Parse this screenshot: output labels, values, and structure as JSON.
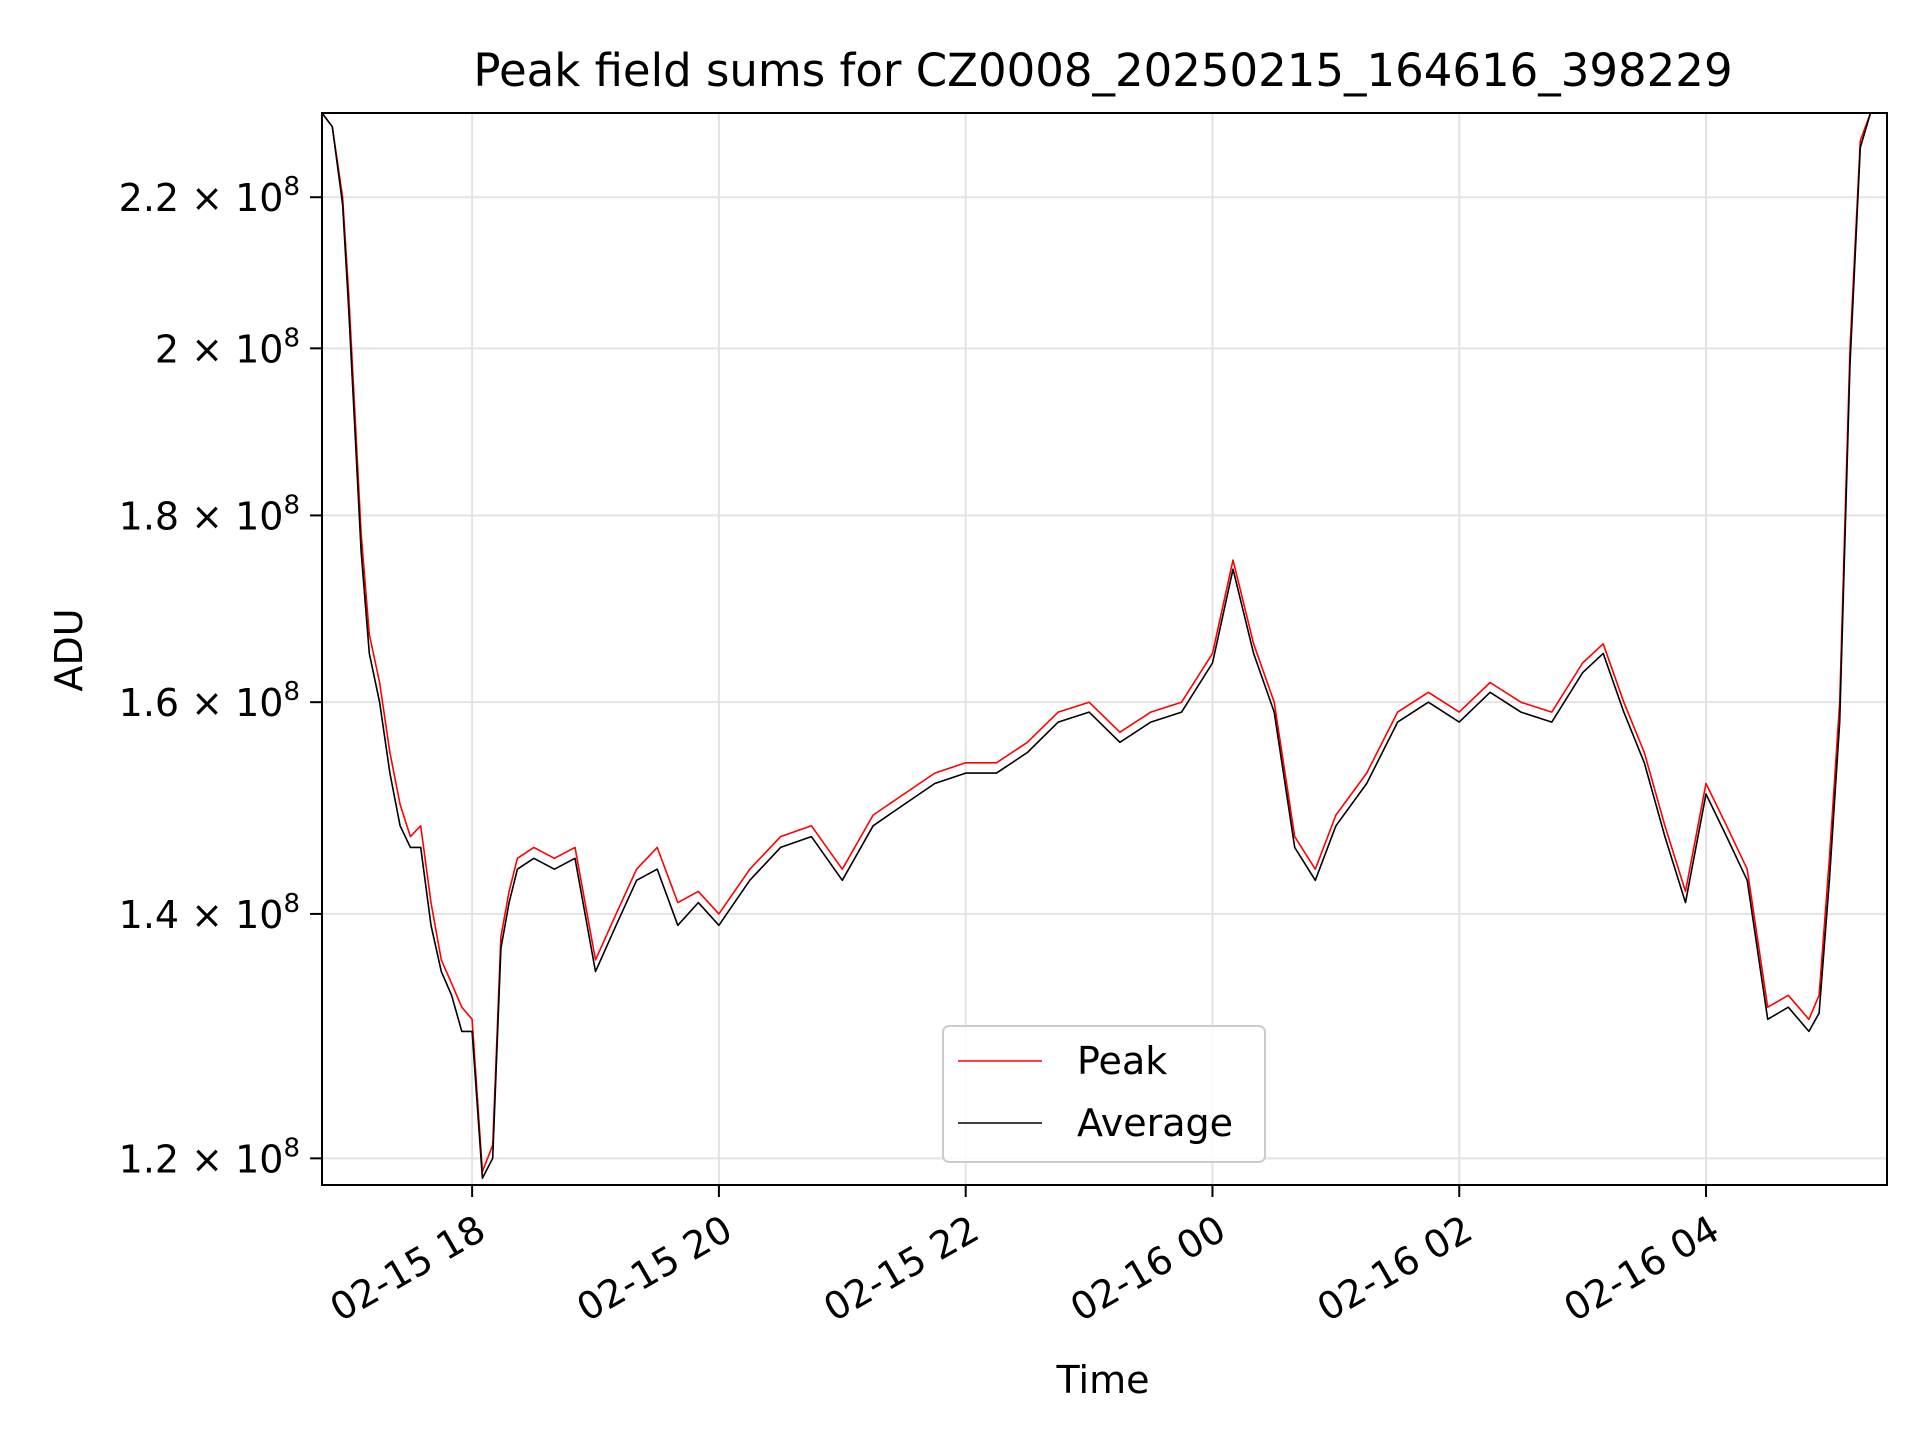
{
  "chart_data": {
    "type": "line",
    "title": "Peak field sums for CZ0008_20250215_164616_398229",
    "xlabel": "Time",
    "ylabel": "ADU",
    "y_scale": "log",
    "xlim": [
      "2025-02-15T16:47",
      "2025-02-16T05:28"
    ],
    "ylim": [
      118000000,
      232000000
    ],
    "x_ticks": [
      "02-15 18",
      "02-15 20",
      "02-15 22",
      "02-16 00",
      "02-16 02",
      "02-16 04"
    ],
    "x_tick_values": [
      "2025-02-15T18:00",
      "2025-02-15T20:00",
      "2025-02-15T22:00",
      "2025-02-16T00:00",
      "2025-02-16T02:00",
      "2025-02-16T04:00"
    ],
    "y_ticks": [
      {
        "value": 120000000,
        "mantissa": "1.2",
        "exponent": "8"
      },
      {
        "value": 140000000,
        "mantissa": "1.4",
        "exponent": "8"
      },
      {
        "value": 160000000,
        "mantissa": "1.6",
        "exponent": "8"
      },
      {
        "value": 180000000,
        "mantissa": "1.8",
        "exponent": "8"
      },
      {
        "value": 200000000,
        "mantissa": "2",
        "exponent": "8"
      },
      {
        "value": 220000000,
        "mantissa": "2.2",
        "exponent": "8"
      }
    ],
    "grid": true,
    "legend_position": "bottom-center",
    "series": [
      {
        "name": "Peak",
        "color": "#ff0000",
        "x": [
          "2025-02-15T16:47",
          "2025-02-15T16:52",
          "2025-02-15T16:57",
          "2025-02-15T17:00",
          "2025-02-15T17:03",
          "2025-02-15T17:06",
          "2025-02-15T17:10",
          "2025-02-15T17:15",
          "2025-02-15T17:20",
          "2025-02-15T17:25",
          "2025-02-15T17:30",
          "2025-02-15T17:35",
          "2025-02-15T17:40",
          "2025-02-15T17:45",
          "2025-02-15T17:50",
          "2025-02-15T17:55",
          "2025-02-15T18:00",
          "2025-02-15T18:05",
          "2025-02-15T18:10",
          "2025-02-15T18:14",
          "2025-02-15T18:18",
          "2025-02-15T18:22",
          "2025-02-15T18:30",
          "2025-02-15T18:40",
          "2025-02-15T18:50",
          "2025-02-15T19:00",
          "2025-02-15T19:10",
          "2025-02-15T19:20",
          "2025-02-15T19:30",
          "2025-02-15T19:40",
          "2025-02-15T19:50",
          "2025-02-15T20:00",
          "2025-02-15T20:15",
          "2025-02-15T20:30",
          "2025-02-15T20:45",
          "2025-02-15T21:00",
          "2025-02-15T21:15",
          "2025-02-15T21:30",
          "2025-02-15T21:45",
          "2025-02-15T22:00",
          "2025-02-15T22:15",
          "2025-02-15T22:30",
          "2025-02-15T22:45",
          "2025-02-15T23:00",
          "2025-02-15T23:15",
          "2025-02-15T23:30",
          "2025-02-15T23:45",
          "2025-02-16T00:00",
          "2025-02-16T00:10",
          "2025-02-16T00:20",
          "2025-02-16T00:30",
          "2025-02-16T00:40",
          "2025-02-16T00:50",
          "2025-02-16T01:00",
          "2025-02-16T01:15",
          "2025-02-16T01:30",
          "2025-02-16T01:45",
          "2025-02-16T02:00",
          "2025-02-16T02:15",
          "2025-02-16T02:30",
          "2025-02-16T02:45",
          "2025-02-16T03:00",
          "2025-02-16T03:10",
          "2025-02-16T03:20",
          "2025-02-16T03:30",
          "2025-02-16T03:40",
          "2025-02-16T03:50",
          "2025-02-16T04:00",
          "2025-02-16T04:10",
          "2025-02-16T04:20",
          "2025-02-16T04:30",
          "2025-02-16T04:40",
          "2025-02-16T04:50",
          "2025-02-16T04:55",
          "2025-02-16T05:00",
          "2025-02-16T05:05",
          "2025-02-16T05:10",
          "2025-02-16T05:15",
          "2025-02-16T05:20",
          "2025-02-16T05:28"
        ],
        "y": [
          232000000,
          230000000,
          220000000,
          207000000,
          192000000,
          178000000,
          167000000,
          162000000,
          155000000,
          150000000,
          147000000,
          148000000,
          141000000,
          136000000,
          134000000,
          132000000,
          131000000,
          119000000,
          121000000,
          138000000,
          142000000,
          145000000,
          146000000,
          145000000,
          146000000,
          136000000,
          140000000,
          144000000,
          146000000,
          141000000,
          142000000,
          140000000,
          144000000,
          147000000,
          148000000,
          144000000,
          149000000,
          151000000,
          153000000,
          154000000,
          154000000,
          156000000,
          159000000,
          160000000,
          157000000,
          159000000,
          160000000,
          165000000,
          175000000,
          166000000,
          160000000,
          147000000,
          144000000,
          149000000,
          153000000,
          159000000,
          161000000,
          159000000,
          162000000,
          160000000,
          159000000,
          164000000,
          166000000,
          160000000,
          155000000,
          148000000,
          142000000,
          152000000,
          148000000,
          144000000,
          132000000,
          133000000,
          131000000,
          133000000,
          145000000,
          160000000,
          200000000,
          228000000,
          232000000,
          232000000
        ]
      },
      {
        "name": "Average",
        "color": "#000000",
        "x": [
          "2025-02-15T16:47",
          "2025-02-15T16:52",
          "2025-02-15T16:57",
          "2025-02-15T17:00",
          "2025-02-15T17:03",
          "2025-02-15T17:06",
          "2025-02-15T17:10",
          "2025-02-15T17:15",
          "2025-02-15T17:20",
          "2025-02-15T17:25",
          "2025-02-15T17:30",
          "2025-02-15T17:35",
          "2025-02-15T17:40",
          "2025-02-15T17:45",
          "2025-02-15T17:50",
          "2025-02-15T17:55",
          "2025-02-15T18:00",
          "2025-02-15T18:05",
          "2025-02-15T18:10",
          "2025-02-15T18:14",
          "2025-02-15T18:18",
          "2025-02-15T18:22",
          "2025-02-15T18:30",
          "2025-02-15T18:40",
          "2025-02-15T18:50",
          "2025-02-15T19:00",
          "2025-02-15T19:10",
          "2025-02-15T19:20",
          "2025-02-15T19:30",
          "2025-02-15T19:40",
          "2025-02-15T19:50",
          "2025-02-15T20:00",
          "2025-02-15T20:15",
          "2025-02-15T20:30",
          "2025-02-15T20:45",
          "2025-02-15T21:00",
          "2025-02-15T21:15",
          "2025-02-15T21:30",
          "2025-02-15T21:45",
          "2025-02-15T22:00",
          "2025-02-15T22:15",
          "2025-02-15T22:30",
          "2025-02-15T22:45",
          "2025-02-15T23:00",
          "2025-02-15T23:15",
          "2025-02-15T23:30",
          "2025-02-15T23:45",
          "2025-02-16T00:00",
          "2025-02-16T00:10",
          "2025-02-16T00:20",
          "2025-02-16T00:30",
          "2025-02-16T00:40",
          "2025-02-16T00:50",
          "2025-02-16T01:00",
          "2025-02-16T01:15",
          "2025-02-16T01:30",
          "2025-02-16T01:45",
          "2025-02-16T02:00",
          "2025-02-16T02:15",
          "2025-02-16T02:30",
          "2025-02-16T02:45",
          "2025-02-16T03:00",
          "2025-02-16T03:10",
          "2025-02-16T03:20",
          "2025-02-16T03:30",
          "2025-02-16T03:40",
          "2025-02-16T03:50",
          "2025-02-16T04:00",
          "2025-02-16T04:10",
          "2025-02-16T04:20",
          "2025-02-16T04:30",
          "2025-02-16T04:40",
          "2025-02-16T04:50",
          "2025-02-16T04:55",
          "2025-02-16T05:00",
          "2025-02-16T05:05",
          "2025-02-16T05:10",
          "2025-02-16T05:15",
          "2025-02-16T05:20",
          "2025-02-16T05:28"
        ],
        "y": [
          232000000,
          230000000,
          219000000,
          205000000,
          190000000,
          176000000,
          165000000,
          160000000,
          153000000,
          148000000,
          146000000,
          146000000,
          139000000,
          135000000,
          133000000,
          130000000,
          130000000,
          118500000,
          120000000,
          137000000,
          141000000,
          144000000,
          145000000,
          144000000,
          145000000,
          135000000,
          139000000,
          143000000,
          144000000,
          139000000,
          141000000,
          139000000,
          143000000,
          146000000,
          147000000,
          143000000,
          148000000,
          150000000,
          152000000,
          153000000,
          153000000,
          155000000,
          158000000,
          159000000,
          156000000,
          158000000,
          159000000,
          164000000,
          174000000,
          165000000,
          159000000,
          146000000,
          143000000,
          148000000,
          152000000,
          158000000,
          160000000,
          158000000,
          161000000,
          159000000,
          158000000,
          163000000,
          165000000,
          159000000,
          154000000,
          147000000,
          141000000,
          151000000,
          147000000,
          143000000,
          131000000,
          132000000,
          130000000,
          131500000,
          143000000,
          158000000,
          198000000,
          227000000,
          232000000,
          232000000
        ]
      }
    ]
  }
}
